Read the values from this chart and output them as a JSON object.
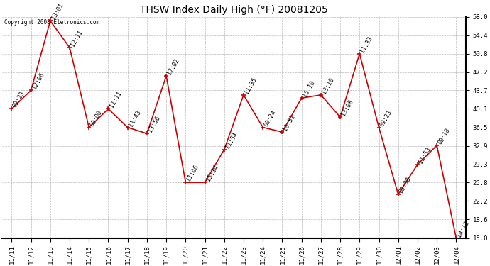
{
  "title": "THSW Index Daily High (°F) 20081205",
  "copyright": "Copyright 2008 Eletronics.com",
  "x_labels": [
    "11/11",
    "11/12",
    "11/13",
    "11/14",
    "11/15",
    "11/16",
    "11/17",
    "11/18",
    "11/19",
    "11/20",
    "11/21",
    "11/22",
    "11/23",
    "11/24",
    "11/25",
    "11/26",
    "11/27",
    "11/28",
    "11/29",
    "11/30",
    "12/01",
    "12/02",
    "12/03",
    "12/04"
  ],
  "y_values": [
    40.1,
    43.7,
    57.2,
    52.0,
    36.5,
    40.1,
    36.5,
    35.3,
    46.5,
    25.8,
    25.8,
    32.2,
    42.8,
    36.5,
    35.6,
    42.2,
    42.8,
    38.5,
    50.8,
    36.5,
    23.5,
    29.3,
    33.0,
    15.0
  ],
  "time_labels": [
    "09:23",
    "12:06",
    "13:01",
    "12:11",
    "00:00",
    "11:11",
    "11:43",
    "13:56",
    "12:02",
    "11:46",
    "15:34",
    "11:54",
    "11:35",
    "00:24",
    "10:52",
    "15:10",
    "13:10",
    "13:08",
    "11:33",
    "09:23",
    "00:00",
    "11:53",
    "09:18",
    "14:12"
  ],
  "line_color": "#cc0000",
  "marker_color": "#cc0000",
  "background_color": "#ffffff",
  "grid_color": "#bbbbbb",
  "ylim": [
    15.0,
    58.0
  ],
  "yticks": [
    15.0,
    18.6,
    22.2,
    25.8,
    29.3,
    32.9,
    36.5,
    40.1,
    43.7,
    47.2,
    50.8,
    54.4,
    58.0
  ],
  "title_fontsize": 10,
  "label_fontsize": 6,
  "tick_fontsize": 6.5,
  "copyright_fontsize": 5.5
}
